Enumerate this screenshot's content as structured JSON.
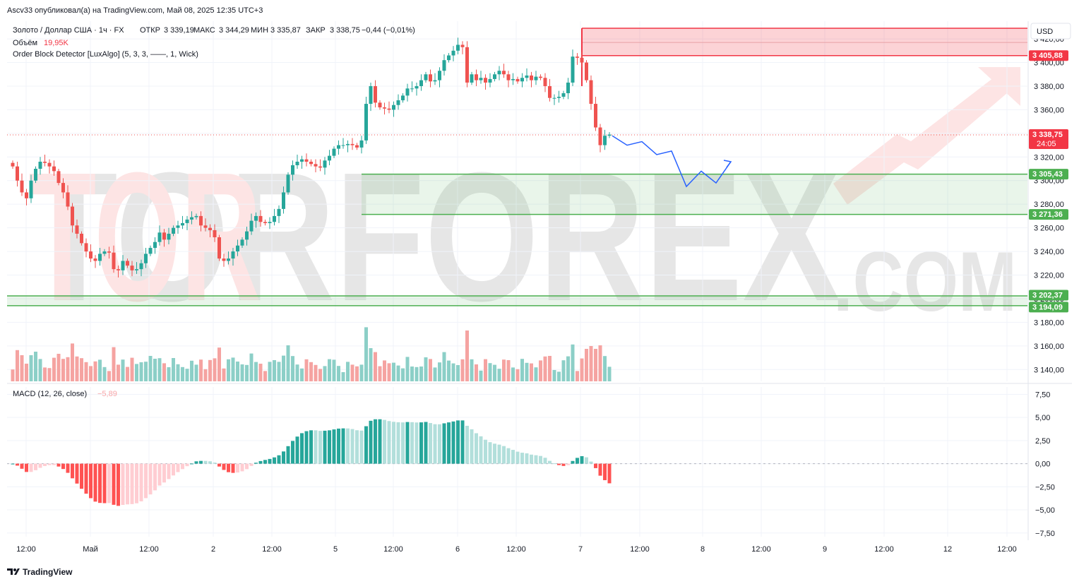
{
  "header": {
    "published_line": "Ascv33 опубликовал(а) на TradingView.com, Май 08, 2025 12:35 UTC+3",
    "symbol_line": "Золото / Доллар США · 1ч · FX",
    "ohlc": {
      "open_label": "ОТКР",
      "open": "3 339,19",
      "high_label": "МАКС",
      "high": "3 344,29",
      "low_label": "МИН",
      "low": "3 335,87",
      "close_label": "ЗАКР",
      "close": "3 338,75",
      "change": "−0,44 (−0,01%)"
    },
    "volume_label": "Объём",
    "volume_value": "19,95K",
    "indicator_line": "Order Block Detector [LuxAlgo] (5, 3, 3, ——, 1, Wick)"
  },
  "currency": "USD",
  "watermark": {
    "text": "TORFOREX",
    "suffix": ".COM"
  },
  "footer": {
    "brand": "TradingView"
  },
  "colors": {
    "up": "#26a69a",
    "down": "#ef5350",
    "supply": "#f23645",
    "demand": "#4caf50",
    "forecast": "#2962ff"
  },
  "chart_data": [
    {
      "type": "candlestick",
      "title": "Золото / Доллар США · 1ч · FX",
      "y_ticks": [
        "3 420,00",
        "3 400,00",
        "3 380,00",
        "3 360,00",
        "3 340,00",
        "3 320,00",
        "3 300,00",
        "3 280,00",
        "3 260,00",
        "3 240,00",
        "3 220,00",
        "3 200,00",
        "3 180,00",
        "3 160,00",
        "3 140,00"
      ],
      "ylim": [
        3130,
        3435
      ],
      "x_tick_labels": [
        "12:00",
        "Май",
        "12:00",
        "2",
        "12:00",
        "5",
        "12:00",
        "6",
        "12:00",
        "7",
        "12:00",
        "8",
        "12:00",
        "9",
        "12:00",
        "12",
        "12:00"
      ],
      "close_series": [
        3312,
        3300,
        3290,
        3285,
        3300,
        3310,
        3316,
        3315,
        3312,
        3308,
        3298,
        3290,
        3278,
        3262,
        3255,
        3247,
        3240,
        3234,
        3232,
        3238,
        3240,
        3239,
        3225,
        3224,
        3232,
        3228,
        3224,
        3225,
        3230,
        3238,
        3243,
        3248,
        3256,
        3250,
        3255,
        3260,
        3262,
        3264,
        3267,
        3269,
        3270,
        3262,
        3260,
        3258,
        3252,
        3234,
        3232,
        3234,
        3240,
        3245,
        3250,
        3257,
        3266,
        3270,
        3265,
        3264,
        3265,
        3270,
        3276,
        3290,
        3305,
        3313,
        3316,
        3318,
        3316,
        3314,
        3312,
        3311,
        3317,
        3321,
        3327,
        3330,
        3330,
        3331,
        3330,
        3328,
        3334,
        3365,
        3380,
        3366,
        3362,
        3361,
        3360,
        3364,
        3368,
        3372,
        3378,
        3378,
        3380,
        3385,
        3390,
        3384,
        3385,
        3393,
        3402,
        3406,
        3410,
        3415,
        3413,
        3383,
        3390,
        3385,
        3387,
        3383,
        3386,
        3390,
        3393,
        3390,
        3385,
        3386,
        3384,
        3387,
        3389,
        3385,
        3388,
        3387,
        3380,
        3370,
        3370,
        3371,
        3374,
        3383,
        3405,
        3404,
        3400,
        3385,
        3365,
        3345,
        3330,
        3338,
        3339
      ],
      "price_labels": [
        {
          "value": "3 405,88",
          "color": "#f23645"
        },
        {
          "value": "3 338,75",
          "sub": "24:05",
          "color": "#f23645"
        },
        {
          "value": "3 305,43",
          "color": "#4caf50"
        },
        {
          "value": "3 271,36",
          "color": "#4caf50"
        },
        {
          "value": "3 202,37",
          "color": "#4caf50"
        },
        {
          "value": "3 194,09",
          "color": "#4caf50"
        }
      ],
      "zones": [
        {
          "kind": "supply",
          "top": 3429,
          "bottom": 3405.88
        },
        {
          "kind": "demand",
          "top": 3305.43,
          "bottom": 3271.36
        },
        {
          "kind": "demand",
          "top": 3202.37,
          "bottom": 3194.09
        }
      ],
      "forecast_path": [
        [
          3338,
          0
        ],
        [
          3330,
          1
        ],
        [
          3333,
          2
        ],
        [
          3322,
          3
        ],
        [
          3325,
          4
        ],
        [
          3295,
          5
        ],
        [
          3308,
          6
        ],
        [
          3298,
          7
        ],
        [
          3316,
          8
        ]
      ],
      "last_price": 3338.75
    },
    {
      "type": "bar",
      "title": "MACD (12, 26, close)",
      "value_label": "−5,89",
      "y_ticks": [
        "7,50",
        "5,00",
        "2,50",
        "0,00",
        "−2,50",
        "−5,00",
        "−7,50"
      ],
      "ylim": [
        -7.9,
        8.3
      ]
    }
  ]
}
